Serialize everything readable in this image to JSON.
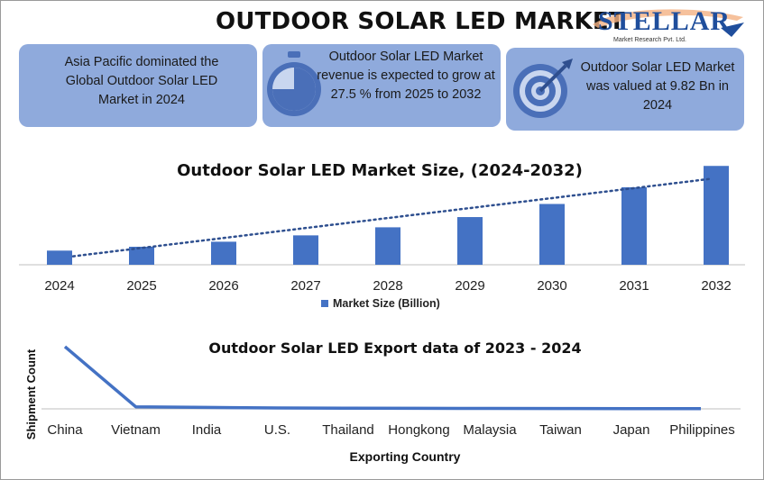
{
  "header": {
    "title": "OUTDOOR SOLAR LED MARKET",
    "logo_text": "STELLAR",
    "logo_subtext": "Market Research Pvt. Ltd."
  },
  "cards": [
    {
      "text": "Asia Pacific dominated the Global Outdoor Solar LED Market in 2024",
      "icon": "none"
    },
    {
      "text": "Outdoor Solar LED Market revenue is expected to grow at 27.5 % from 2025 to 2032",
      "icon": "stopwatch-icon"
    },
    {
      "text": "Outdoor Solar LED Market was valued at 9.82 Bn in 2024",
      "icon": "target-icon"
    }
  ],
  "colors": {
    "bar": "#4472c4",
    "card": "#8faadc",
    "trend": "#2e4f8f",
    "line": "#4472c4"
  },
  "chart_data": [
    {
      "type": "bar",
      "title": "Outdoor Solar LED Market Size, (2024-2032)",
      "categories": [
        "2024",
        "2025",
        "2026",
        "2027",
        "2028",
        "2029",
        "2030",
        "2031",
        "2032"
      ],
      "series": [
        {
          "name": "Market Size (Billion)",
          "values": [
            9.82,
            12.5,
            16.0,
            20.4,
            26.0,
            33.1,
            42.2,
            53.8,
            68.6
          ]
        }
      ],
      "trendline": "dotted linear",
      "ylim": [
        0,
        75
      ],
      "legend": "bottom",
      "grid": false
    },
    {
      "type": "line",
      "title": "Outdoor Solar LED Export data of 2023 - 2024",
      "xlabel": "Exporting Country",
      "ylabel": "Shipment Count",
      "categories": [
        "China",
        "Vietnam",
        "India",
        "U.S.",
        "Thailand",
        "Hongkong",
        "Malaysia",
        "Taiwan",
        "Japan",
        "Philippines"
      ],
      "series": [
        {
          "values": [
            3000,
            100,
            70,
            45,
            30,
            25,
            20,
            15,
            12,
            10
          ]
        }
      ],
      "ylim": [
        0,
        3300
      ],
      "grid": false
    }
  ]
}
